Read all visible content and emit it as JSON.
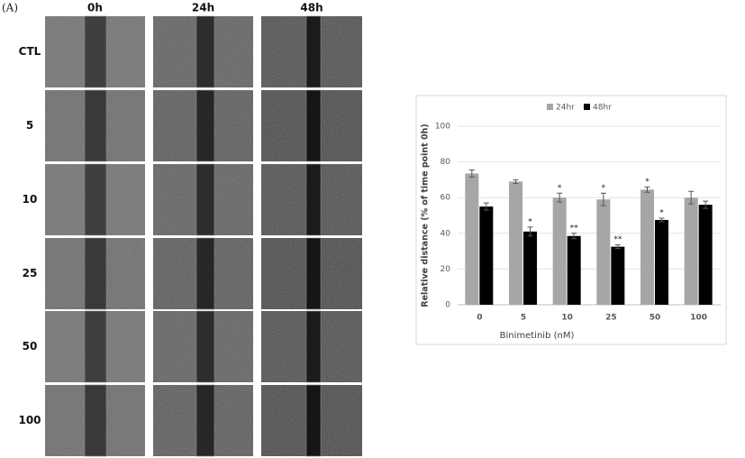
{
  "panel": "(A)",
  "figure": {
    "columns": [
      "0h",
      "24h",
      "48h"
    ],
    "rows": [
      "CTL",
      "5",
      "10",
      "25",
      "50",
      "100"
    ]
  },
  "chart_data": {
    "type": "bar",
    "ylabel": "Relative distance (% of time point 0h)",
    "xlabel": "Binimetinib (nM)",
    "categories": [
      "0",
      "5",
      "10",
      "25",
      "50",
      "100"
    ],
    "series": [
      {
        "name": "24hr",
        "color": "#a6a6a6",
        "values": [
          73.5,
          69,
          60,
          59,
          64.5,
          60
        ],
        "errors": [
          2,
          1,
          2.5,
          3.5,
          1.5,
          3.5
        ],
        "annotations": [
          null,
          null,
          "*",
          "*",
          "*",
          null
        ]
      },
      {
        "name": "48hr",
        "color": "#000000",
        "values": [
          55,
          41,
          38.5,
          32.5,
          47.5,
          56
        ],
        "errors": [
          2,
          2.5,
          1.5,
          1,
          1,
          2
        ],
        "annotations": [
          null,
          "*",
          "**",
          "**",
          "*",
          null
        ]
      }
    ],
    "ylim": [
      0,
      100
    ],
    "yticks": [
      0,
      20,
      40,
      60,
      80,
      100
    ],
    "grid": true,
    "legend": "top"
  }
}
